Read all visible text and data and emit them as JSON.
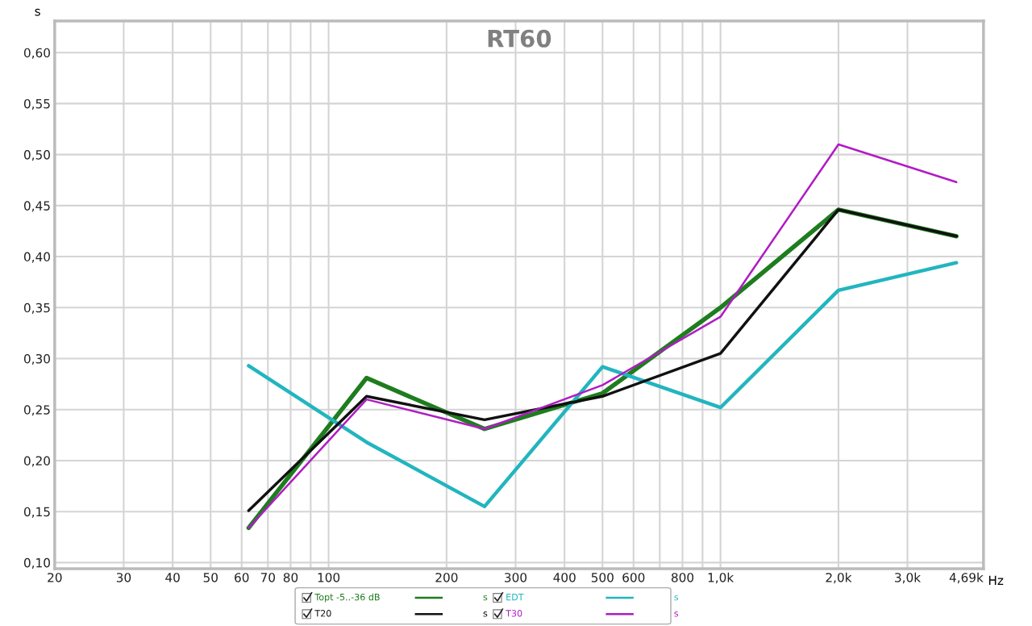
{
  "chart_data": {
    "type": "line",
    "title": "RT60",
    "ylabel": "s",
    "xlabel": "Hz",
    "x": [
      62.5,
      125,
      250,
      500,
      1000,
      2000,
      4000
    ],
    "series": [
      {
        "name": "Topt -5..-36 dB",
        "color": "#1e7d1e",
        "values": [
          0.134,
          0.281,
          0.231,
          0.266,
          0.35,
          0.446,
          0.42
        ]
      },
      {
        "name": "EDT",
        "color": "#22b5bf",
        "values": [
          0.293,
          0.218,
          0.155,
          0.292,
          0.252,
          0.367,
          0.394
        ]
      },
      {
        "name": "T20",
        "color": "#111111",
        "values": [
          0.151,
          0.263,
          0.24,
          0.263,
          0.305,
          0.446,
          0.42
        ]
      },
      {
        "name": "T30",
        "color": "#b01cc4",
        "values": [
          0.134,
          0.26,
          0.231,
          0.274,
          0.341,
          0.51,
          0.473
        ]
      }
    ],
    "log": "x",
    "xlim": [
      20,
      4690
    ],
    "ylim": [
      0.094,
      0.631
    ],
    "xticks": [
      20,
      30,
      40,
      50,
      60,
      70,
      80,
      {
        "value": 90,
        "label": null
      },
      100,
      200,
      300,
      400,
      500,
      600,
      {
        "value": 700,
        "label": null
      },
      800,
      {
        "value": 900,
        "label": null
      },
      {
        "value": 1000,
        "label": "1,0k"
      },
      {
        "value": 2000,
        "label": "2,0k"
      },
      {
        "value": 3000,
        "label": "3,0k"
      },
      {
        "value": 4690,
        "label": "4,69k"
      }
    ],
    "yticks": [
      {
        "value": 0.1,
        "label": "0,10"
      },
      {
        "value": 0.15,
        "label": "0,15"
      },
      {
        "value": 0.2,
        "label": "0,20"
      },
      {
        "value": 0.25,
        "label": "0,25"
      },
      {
        "value": 0.3,
        "label": "0,30"
      },
      {
        "value": 0.35,
        "label": "0,35"
      },
      {
        "value": 0.4,
        "label": "0,40"
      },
      {
        "value": 0.45,
        "label": "0,45"
      },
      {
        "value": 0.5,
        "label": "0,50"
      },
      {
        "value": 0.55,
        "label": "0,55"
      },
      {
        "value": 0.6,
        "label": "0,60"
      }
    ],
    "grid": true,
    "legend": "bottom",
    "marker": "none",
    "line_style": "solid"
  }
}
